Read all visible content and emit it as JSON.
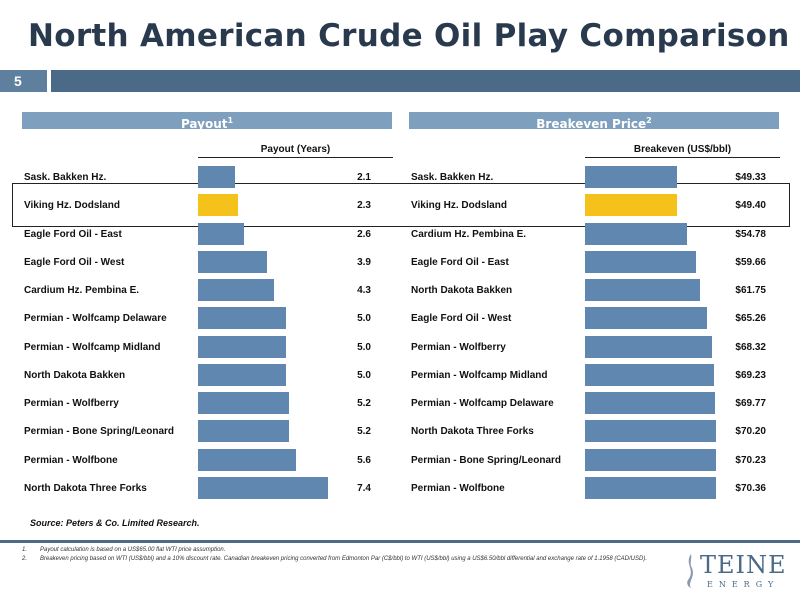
{
  "header": {
    "title": "North American Crude Oil Play Comparison",
    "slide_number": "5"
  },
  "colors": {
    "bar": "#5f87b0",
    "highlight": "#f5c21b",
    "band": "#4a6a88",
    "section_header": "#7e9fbd"
  },
  "chart_data": [
    {
      "type": "bar",
      "orientation": "horizontal",
      "title": "Payout",
      "title_sup": "1",
      "xlabel": "Payout (Years)",
      "xlim": [
        0,
        7.4
      ],
      "highlighted": "Viking Hz. Dodsland",
      "categories": [
        "Sask. Bakken Hz.",
        "Viking Hz. Dodsland",
        "Eagle Ford Oil - East",
        "Eagle Ford Oil - West",
        "Cardium Hz. Pembina E.",
        "Permian - Wolfcamp Delaware",
        "Permian - Wolfcamp Midland",
        "North Dakota Bakken",
        "Permian - Wolfberry",
        "Permian - Bone Spring/Leonard",
        "Permian - Wolfbone",
        "North Dakota Three Forks"
      ],
      "values": [
        2.1,
        2.3,
        2.6,
        3.9,
        4.3,
        5.0,
        5.0,
        5.0,
        5.2,
        5.2,
        5.6,
        7.4
      ],
      "value_labels": [
        "2.1",
        "2.3",
        "2.6",
        "3.9",
        "4.3",
        "5.0",
        "5.0",
        "5.0",
        "5.2",
        "5.2",
        "5.6",
        "7.4"
      ]
    },
    {
      "type": "bar",
      "orientation": "horizontal",
      "title": "Breakeven Price",
      "title_sup": "2",
      "xlabel": "Breakeven (US$/bbl)",
      "xlim": [
        0,
        70.36
      ],
      "highlighted": "Viking Hz. Dodsland",
      "categories": [
        "Sask. Bakken Hz.",
        "Viking Hz. Dodsland",
        "Cardium Hz. Pembina E.",
        "Eagle Ford Oil - East",
        "North Dakota Bakken",
        "Eagle Ford Oil - West",
        "Permian - Wolfberry",
        "Permian - Wolfcamp Midland",
        "Permian - Wolfcamp Delaware",
        "North Dakota Three Forks",
        "Permian - Bone Spring/Leonard",
        "Permian - Wolfbone"
      ],
      "values": [
        49.33,
        49.4,
        54.78,
        59.66,
        61.75,
        65.26,
        68.32,
        69.23,
        69.77,
        70.2,
        70.23,
        70.36
      ],
      "value_labels": [
        "$49.33",
        "$49.40",
        "$54.78",
        "$59.66",
        "$61.75",
        "$65.26",
        "$68.32",
        "$69.23",
        "$69.77",
        "$70.20",
        "$70.23",
        "$70.36"
      ]
    }
  ],
  "source": "Source: Peters & Co. Limited Research.",
  "footnotes": [
    {
      "num": "1.",
      "text": "Payout calculation is based on a US$65.00 flat WTI price assumption."
    },
    {
      "num": "2.",
      "text": "Breakeven pricing based on WTI (US$/bbl) and a 10% discount rate. Canadian breakeven pricing converted from Edmonton Par (C$/bbl) to WTI (US$/bbl) using a US$6.50/bbl differential and exchange rate of 1.1958 (CAD/USD)."
    }
  ],
  "logo": {
    "name": "TEINE",
    "sub": "ENERGY"
  }
}
